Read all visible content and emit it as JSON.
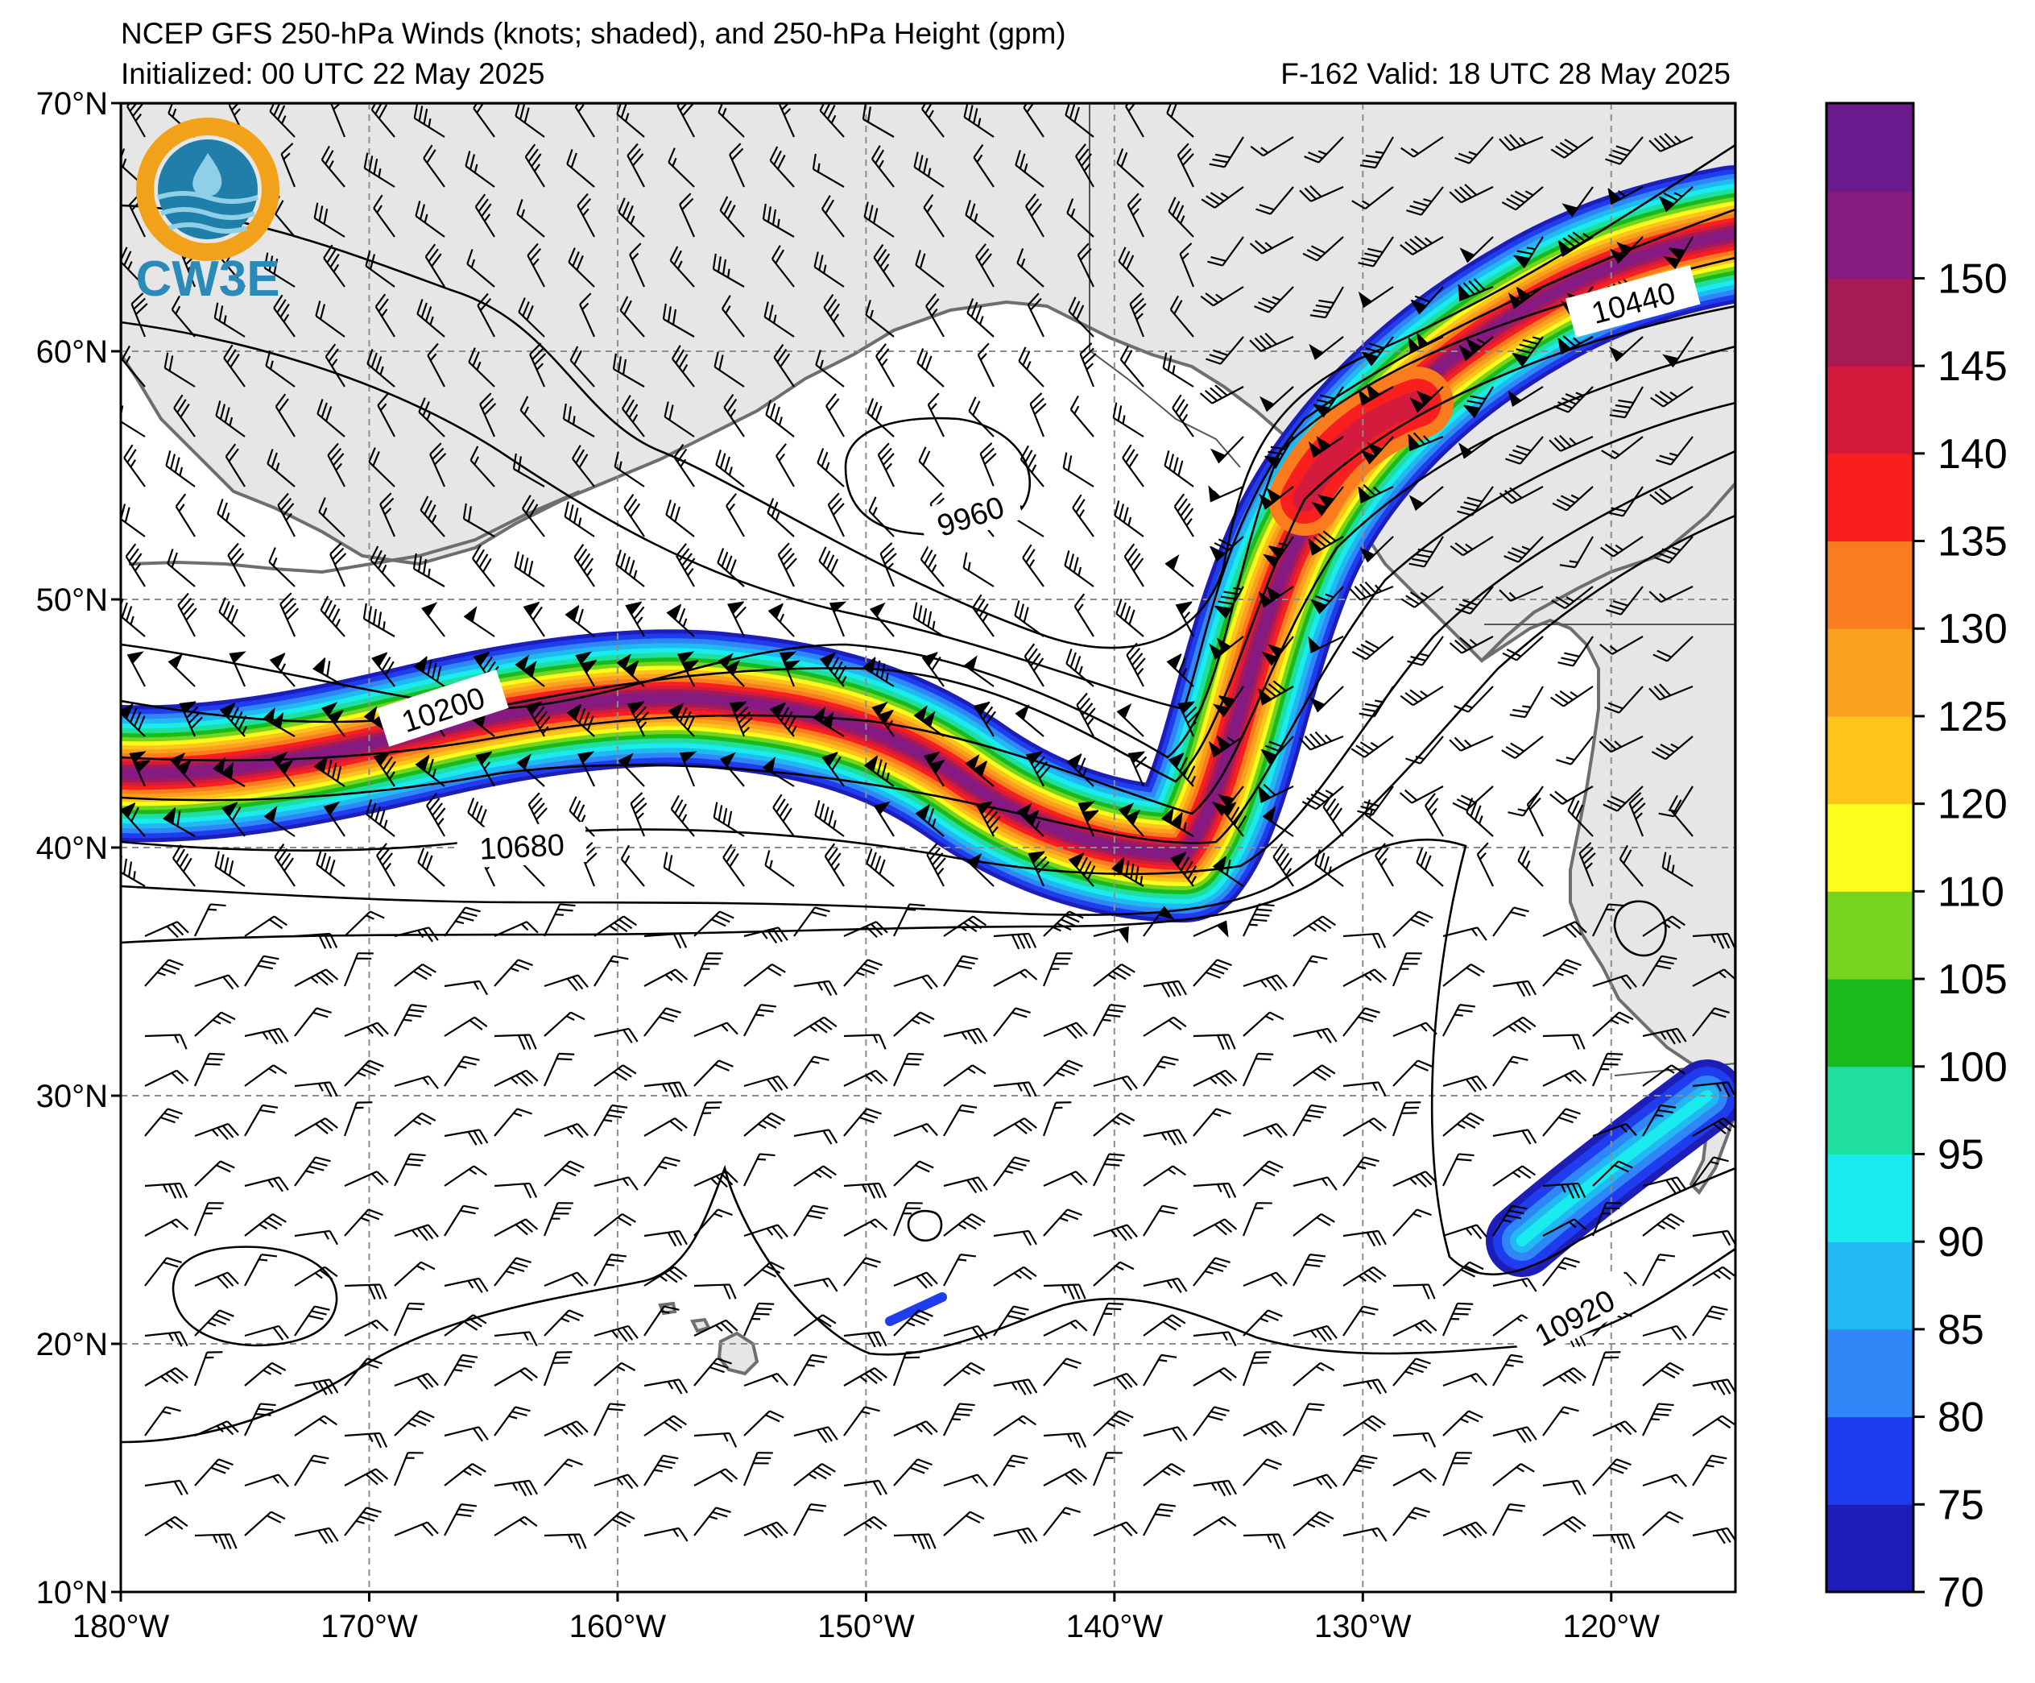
{
  "header": {
    "title": "NCEP GFS 250-hPa Winds (knots; shaded), and 250-hPa Height (gpm)",
    "initialized": "Initialized: 00 UTC 22 May 2025",
    "valid": "F-162  Valid: 18 UTC 28 May 2025"
  },
  "logo": {
    "text": "CW3E"
  },
  "map": {
    "lon_range": [
      -180,
      -115
    ],
    "lat_range": [
      10,
      70
    ],
    "lon_ticks": [
      "180°W",
      "170°W",
      "160°W",
      "150°W",
      "140°W",
      "130°W",
      "120°W"
    ],
    "lat_ticks": [
      "70°N",
      "60°N",
      "50°N",
      "40°N",
      "30°N",
      "20°N",
      "10°N"
    ],
    "grid": true,
    "land_color": "#e6e6e6",
    "coast_color": "#6e6e6e"
  },
  "contours": {
    "labels": [
      "10200",
      "10680",
      "9960",
      "10440",
      "10920"
    ]
  },
  "colorbar": {
    "levels": [
      "70",
      "75",
      "80",
      "85",
      "90",
      "95",
      "100",
      "105",
      "110",
      "120",
      "125",
      "130",
      "135",
      "140",
      "145",
      "150"
    ],
    "colors": [
      "#1d1db8",
      "#1f3cef",
      "#2f86f6",
      "#21b9f2",
      "#19ebee",
      "#1fdea0",
      "#19bb1b",
      "#74d41f",
      "#fdfd1b",
      "#fdc41c",
      "#fba11e",
      "#fb7c1e",
      "#fa1f1f",
      "#d41b3e",
      "#a81a56",
      "#871a80",
      "#6a1a8c"
    ]
  }
}
